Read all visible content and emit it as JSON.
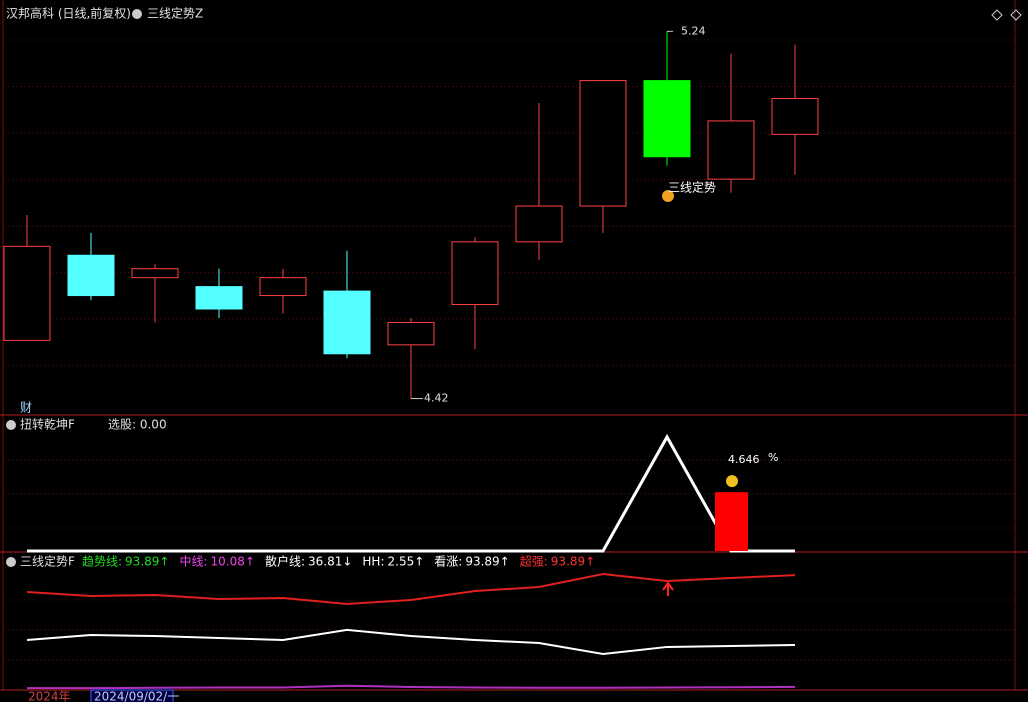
{
  "header": {
    "title": "汉邦高科 (日线,前复权)",
    "indicator": "三线定势Z"
  },
  "chart_data": [
    {
      "type": "candlestick",
      "open": [
        4.55,
        4.74,
        4.69,
        4.67,
        4.65,
        4.66,
        4.54,
        4.63,
        4.77,
        4.85,
        5.13,
        4.91,
        5.01
      ],
      "high": [
        4.83,
        4.79,
        4.72,
        4.71,
        4.71,
        4.75,
        4.6,
        4.78,
        5.08,
        5.13,
        5.24,
        5.19,
        5.21
      ],
      "low": [
        4.55,
        4.64,
        4.59,
        4.6,
        4.61,
        4.51,
        4.42,
        4.53,
        4.73,
        4.79,
        4.94,
        4.88,
        4.92
      ],
      "close": [
        4.76,
        4.65,
        4.71,
        4.62,
        4.69,
        4.52,
        4.59,
        4.77,
        4.85,
        5.13,
        4.96,
        5.04,
        5.09
      ],
      "colors": [
        "#ff4040",
        "#54ffff",
        "#ff4040",
        "#54ffff",
        "#ff4040",
        "#54ffff",
        "#ff4040",
        "#ff4040",
        "#ff4040",
        "#ff4040",
        "#00ff00",
        "#ff4040",
        "#ff4040"
      ],
      "ylim": [
        4.39,
        5.31
      ],
      "signal_label": "三线定势",
      "marker_label": "财"
    },
    {
      "type": "line",
      "title": "扭转乾坤F",
      "subtitle": "选股: 0.00",
      "ylim": [
        0,
        1
      ],
      "series": [
        {
          "color": "#ffffff",
          "values": [
            0,
            0,
            0,
            0,
            0,
            0,
            0,
            0,
            0,
            0,
            1,
            0,
            0
          ]
        }
      ],
      "bar_values": [
        null,
        null,
        null,
        null,
        null,
        null,
        null,
        null,
        null,
        null,
        null,
        4.646,
        null
      ],
      "bar_color": "#ff0000",
      "bar_unit": "%",
      "y2lim": [
        0,
        9
      ]
    },
    {
      "type": "line",
      "title": "三线定势F",
      "ylim": [
        0,
        112
      ],
      "legend": [
        {
          "name": "趋势线:",
          "label": "93.89↑",
          "color": "#22dd22"
        },
        {
          "name": "中线:",
          "label": "10.08↑",
          "color": "#ee44ee"
        },
        {
          "name": "散户线:",
          "label": "36.81↓",
          "color": "#ffffff"
        },
        {
          "name": "HH:",
          "label": "2.55↑",
          "color": "#ffffff"
        },
        {
          "name": "看涨:",
          "label": "93.89↑",
          "color": "#ffffff"
        },
        {
          "name": "超强:",
          "label": "93.89↑",
          "color": "#ff3030"
        }
      ],
      "series": [
        {
          "color": "#e02020",
          "values": [
            80.1,
            76.8,
            77.7,
            74.4,
            75.2,
            70.3,
            73.6,
            80.9,
            84.2,
            94.8,
            89.1,
            91.6,
            93.89
          ]
        },
        {
          "color": "#ffffff",
          "values": [
            40.9,
            45.0,
            44.1,
            42.5,
            40.9,
            49.1,
            44.1,
            40.9,
            38.4,
            29.4,
            35.2,
            36.0,
            36.81
          ]
        },
        {
          "color": "#b030c0",
          "values": [
            1.5,
            1.5,
            1.8,
            2.0,
            2.0,
            3.5,
            2.5,
            2.0,
            1.8,
            1.8,
            2.0,
            2.2,
            2.55
          ]
        }
      ]
    }
  ],
  "x_axis": {
    "year": "2024年",
    "cursor_date": "2024/09/02/一"
  }
}
